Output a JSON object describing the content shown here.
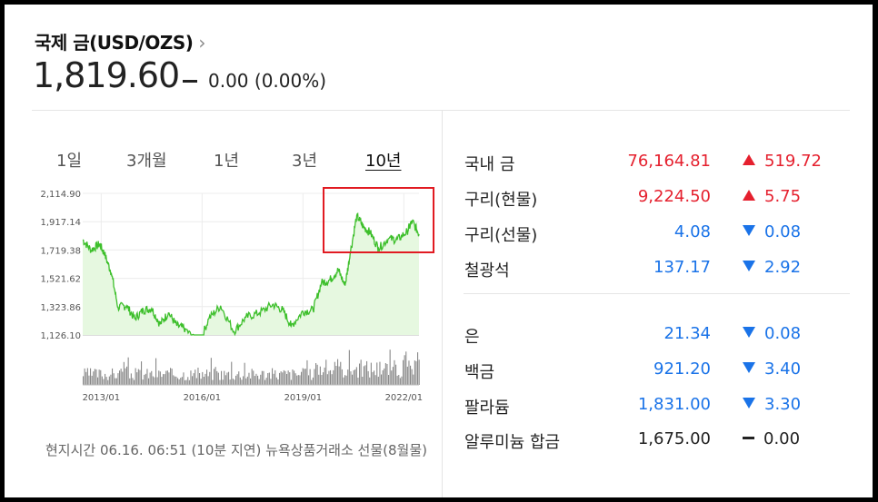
{
  "header": {
    "title": "국제 금(USD/OZS)",
    "chevron": "›",
    "price": "1,819.60",
    "change": "0.00",
    "change_pct": "(0.00%)"
  },
  "tabs": [
    "1일",
    "3개월",
    "1년",
    "3년",
    "10년"
  ],
  "active_tab": "10년",
  "chart_data": {
    "type": "area",
    "title": "",
    "xlabel": "",
    "ylabel": "",
    "y_ticks": [
      "2,114.90",
      "1,917.14",
      "1,719.38",
      "1,521.62",
      "1,323.86",
      "1,126.10"
    ],
    "ylim": [
      1126.1,
      2114.9
    ],
    "x_ticks": [
      "2013/01",
      "2016/01",
      "2019/01",
      "2022/01"
    ],
    "x": [
      2012.45,
      2012.7,
      2012.95,
      2013.1,
      2013.3,
      2013.5,
      2013.75,
      2014.0,
      2014.25,
      2014.5,
      2014.75,
      2015.0,
      2015.25,
      2015.5,
      2015.9,
      2016.2,
      2016.55,
      2016.95,
      2017.3,
      2017.7,
      2018.1,
      2018.4,
      2018.65,
      2019.0,
      2019.3,
      2019.55,
      2019.8,
      2020.05,
      2020.25,
      2020.4,
      2020.6,
      2020.8,
      2021.0,
      2021.25,
      2021.55,
      2021.8,
      2022.1,
      2022.25,
      2022.45
    ],
    "values": [
      1790,
      1720,
      1760,
      1690,
      1560,
      1320,
      1330,
      1240,
      1300,
      1310,
      1200,
      1280,
      1190,
      1170,
      1060,
      1240,
      1330,
      1150,
      1250,
      1280,
      1340,
      1300,
      1190,
      1290,
      1300,
      1490,
      1510,
      1580,
      1470,
      1690,
      1960,
      1880,
      1840,
      1730,
      1800,
      1790,
      1850,
      1920,
      1830
    ],
    "grid": true,
    "fill_color": "#e6f8e0",
    "line_color": "#3dbf2b",
    "highlight_box_color": "#e11b22"
  },
  "volume_data": {
    "type": "bar",
    "color": "#888888"
  },
  "footnote": "현지시간 06.16. 06:51 (10분 지연) 뉴욕상품거래소 선물(8월물)",
  "commodities_group1": [
    {
      "name": "국내 금",
      "value": "76,164.81",
      "change": "519.72",
      "dir": "up"
    },
    {
      "name": "구리(현물)",
      "value": "9,224.50",
      "change": "5.75",
      "dir": "up"
    },
    {
      "name": "구리(선물)",
      "value": "4.08",
      "change": "0.08",
      "dir": "down"
    },
    {
      "name": "철광석",
      "value": "137.17",
      "change": "2.92",
      "dir": "down"
    }
  ],
  "commodities_group2": [
    {
      "name": "은",
      "value": "21.34",
      "change": "0.08",
      "dir": "down"
    },
    {
      "name": "백금",
      "value": "921.20",
      "change": "3.40",
      "dir": "down"
    },
    {
      "name": "팔라듐",
      "value": "1,831.00",
      "change": "3.30",
      "dir": "down"
    },
    {
      "name": "알루미늄 합금",
      "value": "1,675.00",
      "change": "0.00",
      "dir": "flat"
    }
  ],
  "colors": {
    "up": "#e5202e",
    "down": "#1a73e8",
    "flat": "#222222"
  }
}
